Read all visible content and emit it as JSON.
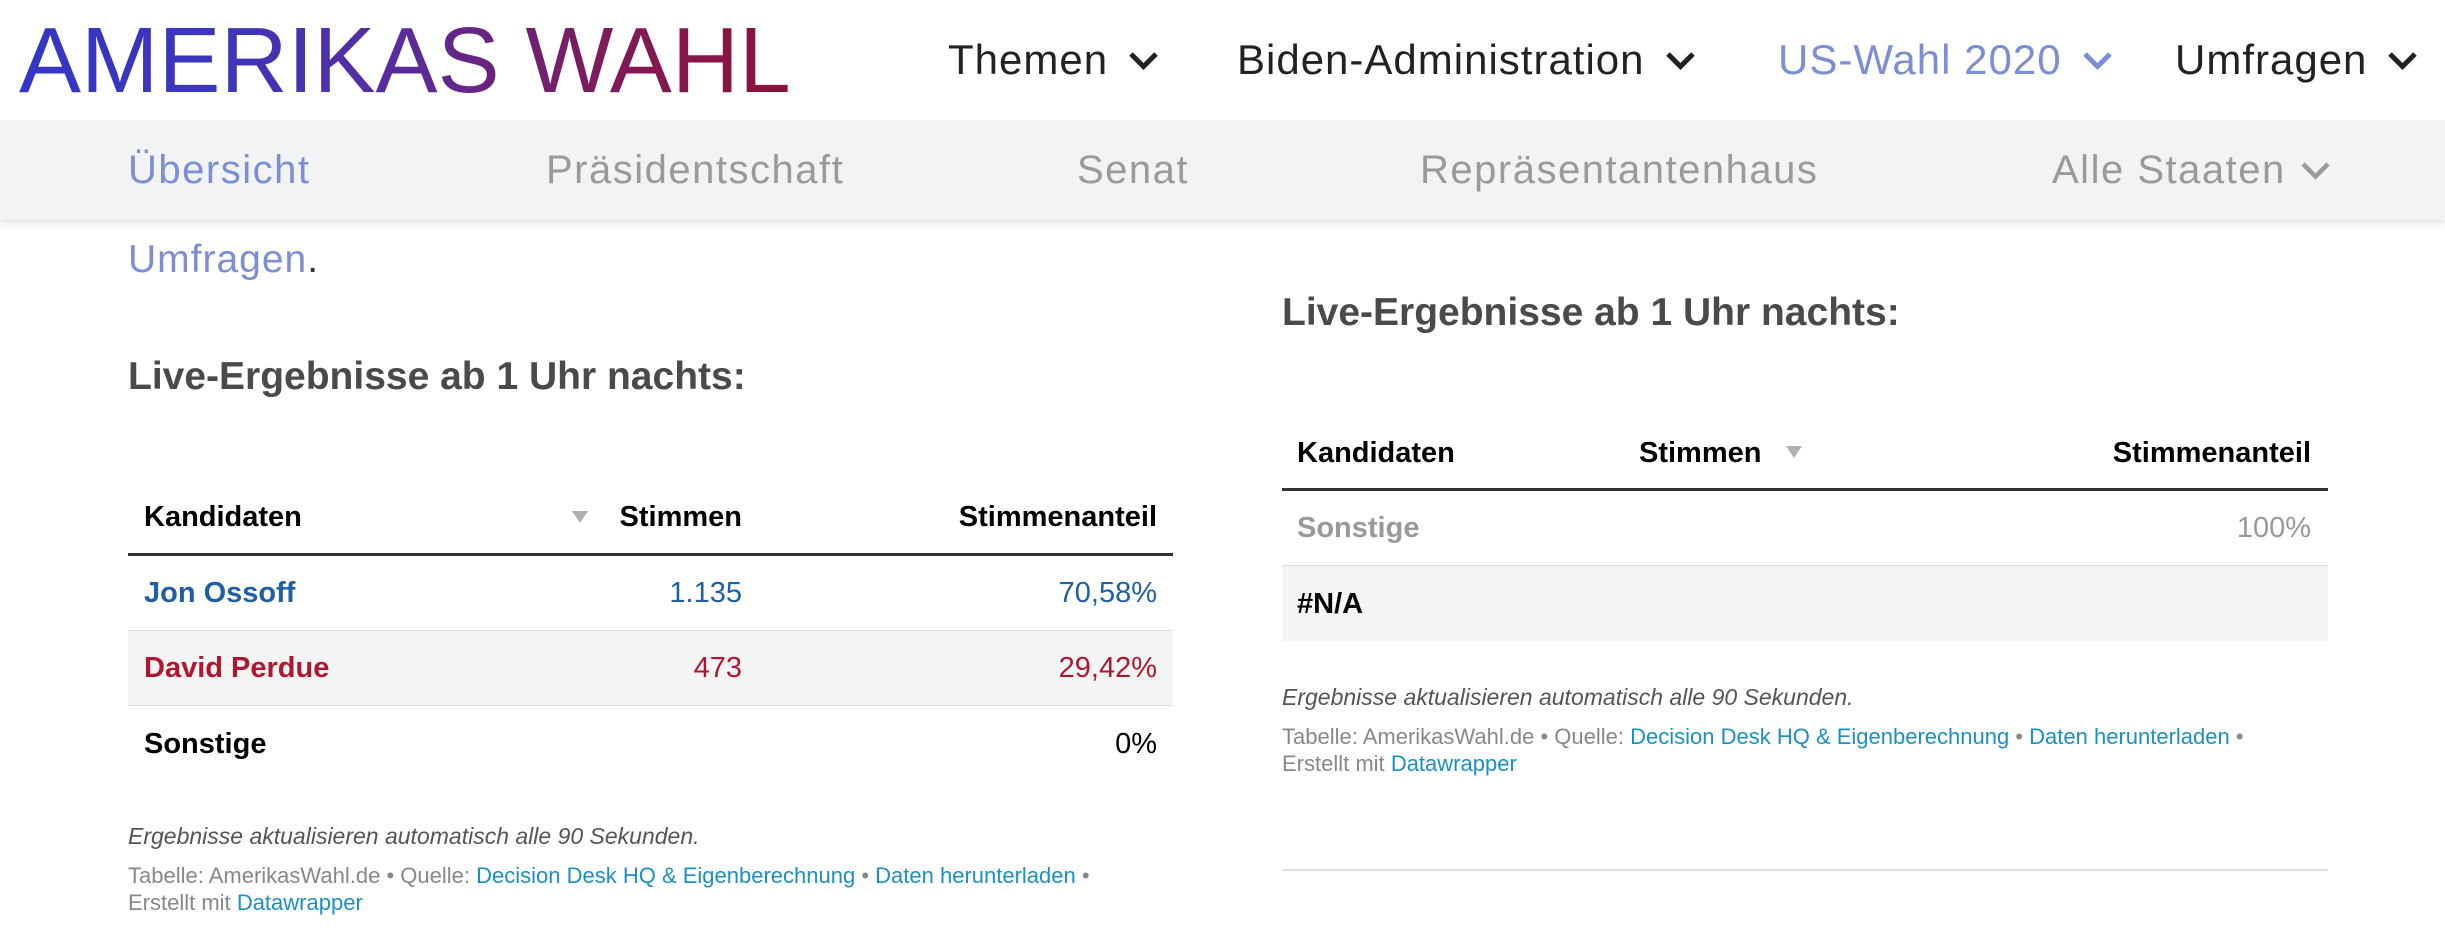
{
  "header": {
    "logo": {
      "word1": "AMERIKAS",
      "word2": "WAHL"
    },
    "nav": [
      {
        "label": "Themen",
        "icon": "chevron-down-icon"
      },
      {
        "label": "Biden-Administration",
        "icon": "chevron-down-icon"
      },
      {
        "label": "US-Wahl 2020",
        "icon": "chevron-down-icon",
        "active": true
      },
      {
        "label": "Umfragen",
        "icon": "chevron-down-icon"
      }
    ]
  },
  "subnav": {
    "items": [
      {
        "label": "Übersicht",
        "active": true
      },
      {
        "label": "Präsidentschaft"
      },
      {
        "label": "Senat"
      },
      {
        "label": "Repräsentantenhaus"
      },
      {
        "label": "Alle Staaten",
        "icon": "chevron-down-icon"
      }
    ]
  },
  "intro": {
    "link_text": "Umfragen",
    "punctuation": "."
  },
  "left_widget": {
    "heading": "Live-Ergebnisse ab 1 Uhr nachts:",
    "table": {
      "headers": {
        "candidate": "Kandidaten",
        "votes": "Stimmen",
        "share": "Stimmenanteil"
      },
      "sort_icon": "sort-arrow-down-icon",
      "rows": [
        {
          "candidate": "Jon Ossoff",
          "votes": "1.135",
          "share": "70,58%",
          "color": "#1f5fa6"
        },
        {
          "candidate": "David Perdue",
          "votes": "473",
          "share": "29,42%",
          "color": "#b0172f"
        },
        {
          "candidate": "Sonstige",
          "votes": "",
          "share": "0%",
          "color": "#000000"
        }
      ]
    },
    "note": "Ergebnisse aktualisieren automatisch alle 90 Sekunden.",
    "credits": {
      "table": "Tabelle: AmerikasWahl.de",
      "separator": "•",
      "source_label": "Quelle:",
      "source_link": "Decision Desk HQ & Eigenberechnung",
      "download_link": "Daten herunterladen",
      "created_label": "Erstellt mit",
      "created_link": "Datawrapper"
    }
  },
  "right_widget": {
    "heading": "Live-Ergebnisse ab 1 Uhr nachts:",
    "table": {
      "headers": {
        "candidate": "Kandidaten",
        "votes": "Stimmen",
        "share": "Stimmenanteil"
      },
      "sort_icon": "sort-arrow-down-icon",
      "rows": [
        {
          "candidate": "Sonstige",
          "votes": "",
          "share": "100%",
          "color": "#999999"
        },
        {
          "candidate": "#N/A",
          "votes": "",
          "share": "",
          "color": "#000000"
        }
      ]
    },
    "note": "Ergebnisse aktualisieren automatisch alle 90 Sekunden.",
    "credits": {
      "table": "Tabelle: AmerikasWahl.de",
      "separator": "•",
      "source_label": "Quelle:",
      "source_link": "Decision Desk HQ & Eigenberechnung",
      "download_link": "Daten herunterladen",
      "created_label": "Erstellt mit",
      "created_link": "Datawrapper"
    }
  },
  "colors": {
    "logo_gradient": [
      "#3336c6",
      "#3b36bd",
      "#5a2b9c",
      "#7d1b5c",
      "#8c1238"
    ],
    "nav_text": "#222222",
    "active_link": "#7b8ed6",
    "subnav_text": "#9a9a9a",
    "heading": "#4a4a4a",
    "credit_link": "#1d8fc4",
    "sort_arrow": "#b0b0b0"
  }
}
